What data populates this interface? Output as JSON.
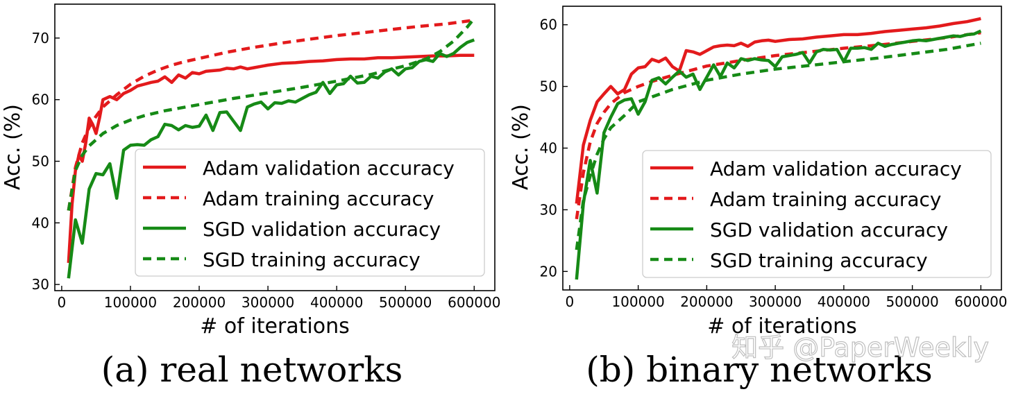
{
  "colors": {
    "adam": "#e31a1c",
    "sgd": "#168a16",
    "axis": "#000000",
    "legend_border": "#cccccc"
  },
  "watermark": "知乎 @PaperWeekly",
  "chart_data": [
    {
      "type": "line",
      "caption": "(a) real networks",
      "xlabel": "# of iterations",
      "ylabel": "Acc. (%)",
      "xlim": [
        -10000,
        630000
      ],
      "ylim": [
        29,
        75.5
      ],
      "xticks": [
        0,
        100000,
        200000,
        300000,
        400000,
        500000,
        600000
      ],
      "xtick_labels": [
        "0",
        "100000",
        "200000",
        "300000",
        "400000",
        "500000",
        "600000"
      ],
      "yticks": [
        30,
        40,
        50,
        60,
        70
      ],
      "ytick_labels": [
        "30",
        "40",
        "50",
        "60",
        "70"
      ],
      "legend_position": "lower-right",
      "series": [
        {
          "name": "Adam validation accuracy",
          "color": "adam",
          "style": "solid",
          "x": [
            10000,
            15000,
            20000,
            25000,
            30000,
            35000,
            40000,
            45000,
            50000,
            55000,
            60000,
            70000,
            80000,
            90000,
            100000,
            110000,
            120000,
            130000,
            140000,
            150000,
            160000,
            170000,
            180000,
            190000,
            200000,
            210000,
            220000,
            230000,
            240000,
            250000,
            260000,
            270000,
            280000,
            290000,
            300000,
            320000,
            340000,
            360000,
            380000,
            400000,
            420000,
            440000,
            460000,
            480000,
            500000,
            520000,
            540000,
            560000,
            580000,
            600000
          ],
          "values": [
            33.5,
            43,
            48.5,
            51,
            50,
            53,
            57,
            56,
            54.5,
            57,
            60,
            60.5,
            60,
            61,
            61.5,
            62.2,
            62.5,
            62.8,
            63,
            63.7,
            62.8,
            64,
            63.5,
            64.4,
            64.2,
            64.6,
            64.7,
            64.8,
            65.1,
            65,
            65.3,
            65,
            65.2,
            65.4,
            65.6,
            65.9,
            66,
            66.2,
            66.3,
            66.5,
            66.6,
            66.6,
            66.8,
            66.8,
            66.9,
            67,
            67.1,
            67.1,
            67.2,
            67.2
          ]
        },
        {
          "name": "Adam training accuracy",
          "color": "adam",
          "style": "dashed",
          "x": [
            10000,
            20000,
            30000,
            40000,
            50000,
            60000,
            80000,
            100000,
            120000,
            140000,
            160000,
            180000,
            200000,
            240000,
            280000,
            320000,
            360000,
            400000,
            440000,
            480000,
            520000,
            560000,
            600000
          ],
          "values": [
            42,
            49,
            53,
            55.5,
            57.3,
            58.8,
            60.8,
            62.5,
            63.8,
            64.8,
            65.6,
            66.2,
            66.7,
            67.7,
            68.5,
            69.2,
            69.8,
            70.4,
            70.9,
            71.4,
            71.9,
            72.3,
            72.9
          ]
        },
        {
          "name": "SGD validation accuracy",
          "color": "sgd",
          "style": "solid",
          "x": [
            10000,
            20000,
            30000,
            40000,
            50000,
            60000,
            70000,
            80000,
            90000,
            100000,
            110000,
            120000,
            130000,
            140000,
            150000,
            160000,
            170000,
            180000,
            190000,
            200000,
            210000,
            220000,
            230000,
            240000,
            250000,
            260000,
            270000,
            280000,
            290000,
            300000,
            310000,
            320000,
            330000,
            340000,
            350000,
            360000,
            370000,
            380000,
            390000,
            400000,
            410000,
            420000,
            430000,
            440000,
            450000,
            460000,
            470000,
            480000,
            490000,
            500000,
            510000,
            520000,
            530000,
            540000,
            550000,
            560000,
            570000,
            580000,
            590000,
            600000
          ],
          "values": [
            31,
            40.5,
            36.7,
            45.5,
            48,
            47.8,
            49.6,
            44,
            51.8,
            52.6,
            52.7,
            52.6,
            53.5,
            54,
            56,
            55.8,
            55.1,
            55.8,
            55.5,
            55.7,
            57.5,
            55,
            57.9,
            58,
            56.5,
            55,
            58.8,
            59.3,
            59.6,
            58.5,
            59.5,
            59.4,
            59.8,
            59.6,
            60.2,
            60.8,
            61.2,
            62.8,
            61,
            62.4,
            62.6,
            63.8,
            62.7,
            62.8,
            63.8,
            63.5,
            64.5,
            65,
            64,
            65,
            65.2,
            66.2,
            66.5,
            66.2,
            67.5,
            67,
            67.5,
            68.5,
            69.3,
            69.7
          ]
        },
        {
          "name": "SGD training accuracy",
          "color": "sgd",
          "style": "dashed",
          "x": [
            10000,
            20000,
            30000,
            40000,
            60000,
            80000,
            100000,
            120000,
            150000,
            200000,
            250000,
            300000,
            350000,
            400000,
            450000,
            500000,
            530000,
            550000,
            570000,
            590000,
            600000
          ],
          "values": [
            42,
            48.5,
            51,
            52.5,
            54.5,
            55.8,
            56.7,
            57.4,
            58.2,
            59.2,
            60.2,
            61.1,
            62,
            63,
            64.1,
            65.5,
            66.6,
            67.8,
            69.5,
            71.8,
            73.2
          ]
        }
      ]
    },
    {
      "type": "line",
      "caption": "(b) binary networks",
      "xlabel": "# of iterations",
      "ylabel": "Acc. (%)",
      "xlim": [
        -10000,
        630000
      ],
      "ylim": [
        17,
        63
      ],
      "xticks": [
        0,
        100000,
        200000,
        300000,
        400000,
        500000,
        600000
      ],
      "xtick_labels": [
        "0",
        "100000",
        "200000",
        "300000",
        "400000",
        "500000",
        "600000"
      ],
      "yticks": [
        20,
        30,
        40,
        50,
        60
      ],
      "ytick_labels": [
        "20",
        "30",
        "40",
        "50",
        "60"
      ],
      "legend_position": "lower-right",
      "series": [
        {
          "name": "Adam validation accuracy",
          "color": "adam",
          "style": "solid",
          "x": [
            10000,
            20000,
            30000,
            40000,
            50000,
            60000,
            70000,
            80000,
            90000,
            100000,
            110000,
            120000,
            130000,
            140000,
            150000,
            160000,
            170000,
            180000,
            190000,
            200000,
            210000,
            220000,
            230000,
            240000,
            250000,
            260000,
            270000,
            280000,
            290000,
            300000,
            320000,
            340000,
            360000,
            380000,
            400000,
            420000,
            440000,
            460000,
            480000,
            500000,
            520000,
            540000,
            560000,
            580000,
            600000
          ],
          "values": [
            31,
            40.5,
            44.5,
            47.5,
            48.8,
            50,
            48.8,
            49.5,
            52,
            53,
            53.2,
            54.4,
            54,
            54.6,
            53.2,
            52.5,
            55.8,
            55.6,
            55.2,
            55.8,
            56.4,
            56.6,
            56.7,
            56.6,
            57,
            56.5,
            57.2,
            57.4,
            57.5,
            57.3,
            57.6,
            57.7,
            58,
            58.2,
            58.4,
            58.4,
            58.6,
            58.9,
            59.1,
            59.3,
            59.5,
            59.8,
            60.2,
            60.5,
            61
          ]
        },
        {
          "name": "Adam training accuracy",
          "color": "adam",
          "style": "dashed",
          "x": [
            10000,
            20000,
            30000,
            40000,
            50000,
            60000,
            80000,
            100000,
            120000,
            150000,
            200000,
            250000,
            300000,
            350000,
            400000,
            450000,
            500000,
            550000,
            600000
          ],
          "values": [
            28.5,
            36,
            41,
            44,
            45.8,
            47.2,
            49,
            50,
            50.8,
            51.8,
            53.3,
            54.2,
            55,
            55.6,
            56.2,
            56.7,
            57.3,
            57.9,
            58.7
          ]
        },
        {
          "name": "SGD validation accuracy",
          "color": "sgd",
          "style": "solid",
          "x": [
            10000,
            20000,
            30000,
            40000,
            50000,
            60000,
            70000,
            80000,
            90000,
            100000,
            110000,
            120000,
            130000,
            140000,
            150000,
            160000,
            170000,
            180000,
            190000,
            200000,
            210000,
            220000,
            230000,
            240000,
            250000,
            260000,
            270000,
            280000,
            290000,
            300000,
            310000,
            320000,
            330000,
            340000,
            350000,
            360000,
            370000,
            380000,
            390000,
            400000,
            410000,
            420000,
            430000,
            440000,
            450000,
            460000,
            470000,
            480000,
            490000,
            500000,
            510000,
            520000,
            530000,
            540000,
            550000,
            560000,
            570000,
            580000,
            590000,
            600000
          ],
          "values": [
            18.7,
            31,
            38,
            32.7,
            42.5,
            45,
            47.2,
            47.8,
            48,
            45.5,
            47.5,
            51,
            51.4,
            50.4,
            51.5,
            52.5,
            51.5,
            52,
            49.5,
            51.5,
            53.5,
            51.6,
            53.8,
            53,
            54.5,
            54.2,
            54.5,
            54.3,
            54.2,
            53.2,
            54.8,
            55,
            55.2,
            55.5,
            53.8,
            55.6,
            56,
            55.9,
            56,
            54,
            56.2,
            56.2,
            56.3,
            56,
            57,
            56.5,
            56.8,
            57,
            57.2,
            57.4,
            57.5,
            57.4,
            57.6,
            57.8,
            58,
            58.2,
            58.1,
            58.4,
            58.5,
            59
          ]
        },
        {
          "name": "SGD training accuracy",
          "color": "sgd",
          "style": "dashed",
          "x": [
            10000,
            20000,
            30000,
            40000,
            50000,
            60000,
            80000,
            100000,
            120000,
            150000,
            200000,
            250000,
            300000,
            350000,
            400000,
            450000,
            500000,
            550000,
            600000
          ],
          "values": [
            23.5,
            31.5,
            35.5,
            39,
            41.5,
            43.3,
            45.3,
            47.5,
            48.3,
            49.5,
            51,
            52,
            52.8,
            53.4,
            54,
            54.6,
            55.3,
            56,
            57
          ]
        }
      ]
    }
  ]
}
